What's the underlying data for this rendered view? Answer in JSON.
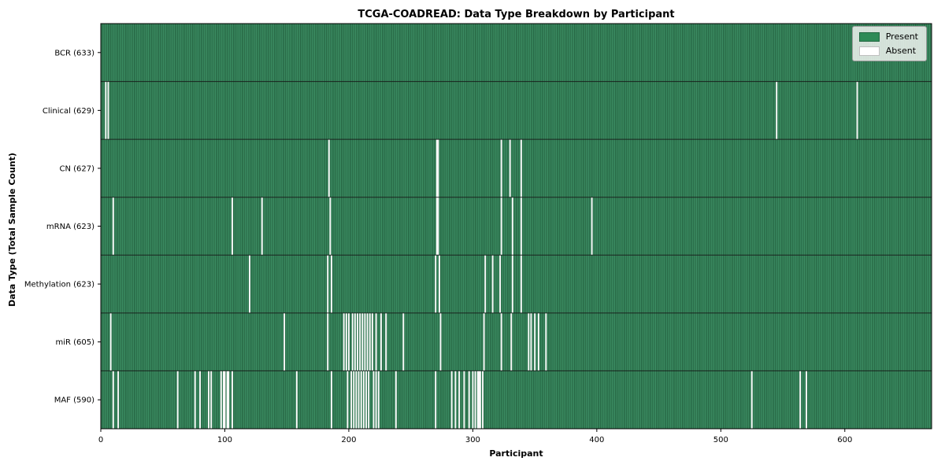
{
  "chart_data": {
    "type": "heatmap",
    "title": "TCGA-COADREAD: Data Type Breakdown by Participant",
    "xlabel": "Participant",
    "ylabel": "Data Type (Total Sample Count)",
    "x_ticks": [
      0,
      100,
      200,
      300,
      400,
      500,
      600
    ],
    "x_range": [
      0,
      670
    ],
    "grid": false,
    "legend": {
      "position": "upper-right",
      "entries": [
        {
          "label": "Present",
          "color": "#2E8B57"
        },
        {
          "label": "Absent",
          "color": "#FFFFFF"
        }
      ]
    },
    "colors": {
      "present_fill": "#3E9166",
      "present_edge": "#1E5838",
      "absent_line": "#FAFAFA",
      "row_separator": "#121212",
      "spine": "#000000",
      "tick": "#000000",
      "text": "#000000"
    },
    "rows": [
      {
        "name": "BCR",
        "label": "BCR (633)",
        "present_count": 633,
        "absent_participants": []
      },
      {
        "name": "Clinical",
        "label": "Clinical (629)",
        "present_count": 629,
        "absent_participants": [
          4,
          6,
          545,
          610
        ]
      },
      {
        "name": "CN",
        "label": "CN (627)",
        "present_count": 627,
        "absent_participants": [
          184,
          271,
          272,
          323,
          330,
          339
        ]
      },
      {
        "name": "mRNA",
        "label": "mRNA (623)",
        "present_count": 623,
        "absent_participants": [
          10,
          106,
          130,
          185,
          271,
          272,
          323,
          332,
          339,
          396
        ]
      },
      {
        "name": "Methylation",
        "label": "Methylation (623)",
        "present_count": 623,
        "absent_participants": [
          120,
          183,
          186,
          270,
          273,
          310,
          316,
          322,
          332,
          339
        ]
      },
      {
        "name": "miR",
        "label": "miR (605)",
        "present_count": 605,
        "absent_participants": [
          8,
          148,
          183,
          196,
          198,
          200,
          203,
          205,
          207,
          209,
          211,
          213,
          215,
          217,
          219,
          222,
          226,
          230,
          244,
          274,
          309,
          323,
          331,
          345,
          347,
          350,
          353,
          359
        ]
      },
      {
        "name": "MAF",
        "label": "MAF (590)",
        "present_count": 590,
        "absent_participants": [
          10,
          14,
          62,
          76,
          80,
          87,
          89,
          97,
          99,
          100,
          102,
          103,
          106,
          158,
          186,
          199,
          202,
          204,
          206,
          208,
          210,
          212,
          214,
          216,
          220,
          222,
          224,
          238,
          270,
          283,
          286,
          289,
          293,
          297,
          300,
          302,
          304,
          305,
          306,
          308,
          525,
          564,
          569
        ]
      }
    ]
  }
}
